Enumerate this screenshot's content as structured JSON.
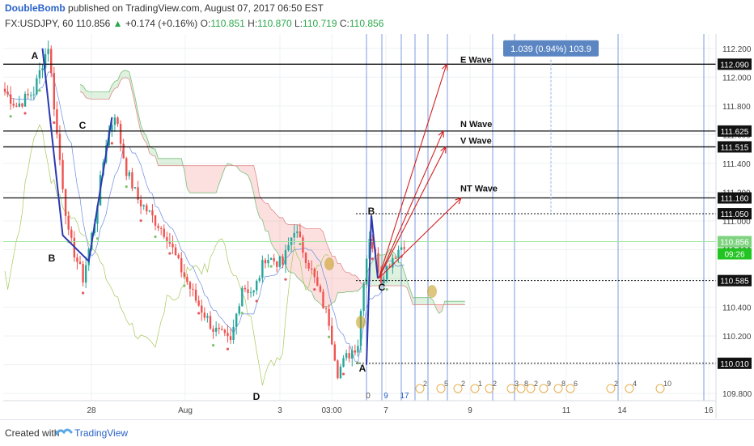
{
  "header": {
    "author": "DoubleBomb",
    "published_text": "published on TradingView.com, August 07, 2017 06:50 EST",
    "symbol": "FX:USDJPY, 60",
    "last": "110.856",
    "change": "+0.174 (+0.16%)",
    "o_label": "O:",
    "o_value": "110.851",
    "h_label": "H:",
    "h_value": "110.870",
    "l_label": "L:",
    "l_value": "110.719",
    "c_label": "C:",
    "c_value": "110.856"
  },
  "footer": {
    "created_with": "Created with",
    "brand": "TradingView"
  },
  "colors": {
    "bull": "#26a69a",
    "bear": "#ef5350",
    "wave": "#2c38b0",
    "arrow": "#d42020",
    "price_badge": "#7fd37f",
    "current_price_badge": "#22c422",
    "measure_box": "#5b86c2"
  },
  "chart_data": {
    "type": "candlestick",
    "symbol": "USDJPY",
    "interval": "60",
    "ylim": [
      109.75,
      112.3
    ],
    "y_ticks": [
      "112.200",
      "112.000",
      "111.800",
      "111.600",
      "111.400",
      "111.200",
      "111.000",
      "110.800",
      "110.600",
      "110.400",
      "110.200",
      "110.000",
      "109.800"
    ],
    "x_ticks": [
      "28",
      "Aug",
      "3",
      "03:00",
      "7",
      "9",
      "11",
      "14",
      "16"
    ],
    "horizontal_levels": [
      {
        "value": 112.09,
        "label": "112.090",
        "style": "solid"
      },
      {
        "value": 111.625,
        "label": "111.625",
        "style": "solid"
      },
      {
        "value": 111.515,
        "label": "111.515",
        "style": "solid"
      },
      {
        "value": 111.16,
        "label": "111.160",
        "style": "solid"
      },
      {
        "value": 111.05,
        "label": "111.050",
        "style": "dotted"
      },
      {
        "value": 110.585,
        "label": "110.585",
        "style": "dotted"
      },
      {
        "value": 110.01,
        "label": "110.010",
        "style": "dotted"
      }
    ],
    "current_price": {
      "value": 110.856,
      "label": "110.856",
      "countdown": "09:26"
    },
    "targets": [
      {
        "label": "E Wave",
        "value": 112.09
      },
      {
        "label": "N Wave",
        "value": 111.625
      },
      {
        "label": "V Wave",
        "value": 111.515
      },
      {
        "label": "NT Wave",
        "value": 111.16
      }
    ],
    "wave_labels": [
      "A",
      "B",
      "C",
      "A",
      "B",
      "C",
      "D"
    ],
    "measure": {
      "text": "1.039 (0.94%) 103.9"
    },
    "time_counts": [
      "0",
      "9",
      "17"
    ],
    "event_numbers": [
      "2",
      "5",
      "2",
      "1",
      "2",
      "3",
      "8",
      "2",
      "9",
      "8",
      "6",
      "2",
      "4",
      "10"
    ],
    "grid": true
  }
}
